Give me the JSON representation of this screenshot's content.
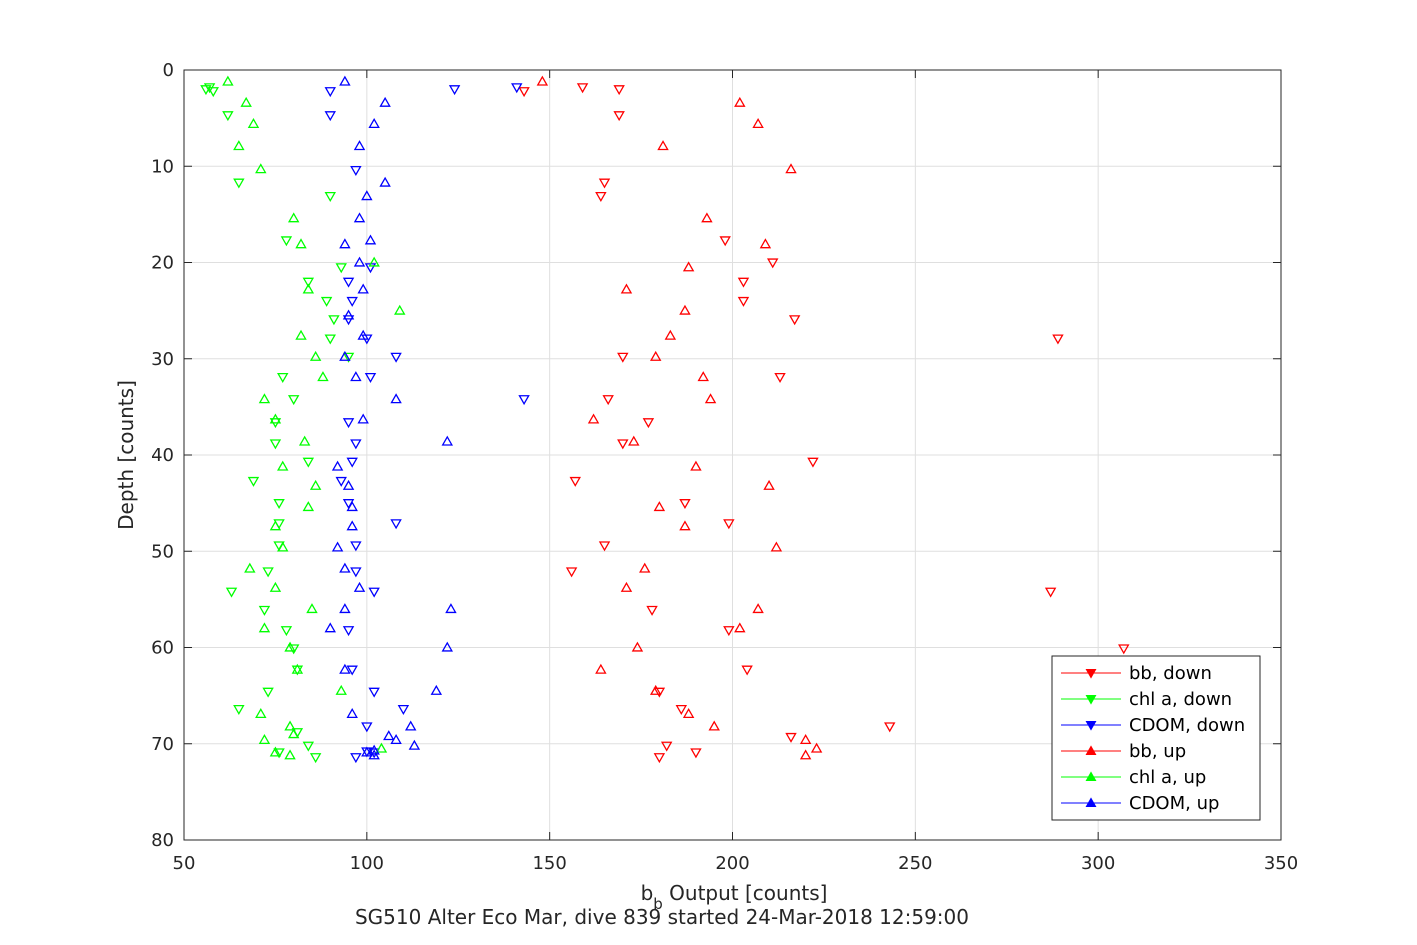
{
  "chart_data": {
    "type": "scatter",
    "xlabel_main": "b",
    "xlabel_sub": "b",
    "xlabel_rest": " Output [counts]",
    "ylabel": "Depth [counts]",
    "title": "SG510 Alter Eco Mar, dive 839 started 24-Mar-2018 12:59:00",
    "xlim": [
      50,
      350
    ],
    "ylim": [
      0,
      80
    ],
    "y_reversed": true,
    "grid": true,
    "legend_position": "bottom-right",
    "xticks": [
      "50",
      "100",
      "150",
      "200",
      "250",
      "300",
      "350"
    ],
    "yticks": [
      "0",
      "10",
      "20",
      "30",
      "40",
      "50",
      "60",
      "70",
      "80"
    ],
    "series": [
      {
        "name": "bb, down",
        "color": "#ff0000",
        "marker": "triangle-down",
        "points": [
          [
            159,
            1.8
          ],
          [
            169,
            2.0
          ],
          [
            143,
            2.2
          ],
          [
            169,
            4.7
          ],
          [
            165,
            11.7
          ],
          [
            164,
            13.1
          ],
          [
            198,
            17.7
          ],
          [
            203,
            22.0
          ],
          [
            211,
            20.0
          ],
          [
            203,
            24.0
          ],
          [
            217,
            25.9
          ],
          [
            289,
            27.9
          ],
          [
            170,
            29.8
          ],
          [
            213,
            31.9
          ],
          [
            166,
            34.2
          ],
          [
            177,
            36.6
          ],
          [
            170,
            38.8
          ],
          [
            222,
            40.7
          ],
          [
            157,
            42.7
          ],
          [
            187,
            45.0
          ],
          [
            199,
            47.1
          ],
          [
            165,
            49.4
          ],
          [
            156,
            52.1
          ],
          [
            287,
            54.2
          ],
          [
            178,
            56.1
          ],
          [
            199,
            58.2
          ],
          [
            307,
            60.1
          ],
          [
            204,
            62.3
          ],
          [
            180,
            64.6
          ],
          [
            186,
            66.4
          ],
          [
            216,
            69.3
          ],
          [
            182,
            70.2
          ],
          [
            190,
            70.9
          ],
          [
            180,
            71.4
          ],
          [
            243,
            68.2
          ]
        ]
      },
      {
        "name": "chl a, down",
        "color": "#00ff00",
        "marker": "triangle-down",
        "points": [
          [
            57,
            1.8
          ],
          [
            56,
            2.0
          ],
          [
            58,
            2.2
          ],
          [
            62,
            4.7
          ],
          [
            65,
            11.7
          ],
          [
            90,
            13.1
          ],
          [
            78,
            17.7
          ],
          [
            84,
            22.0
          ],
          [
            93,
            20.5
          ],
          [
            89,
            24.0
          ],
          [
            91,
            25.9
          ],
          [
            90,
            27.9
          ],
          [
            95,
            29.8
          ],
          [
            77,
            31.9
          ],
          [
            80,
            34.2
          ],
          [
            75,
            36.6
          ],
          [
            75,
            38.8
          ],
          [
            84,
            40.7
          ],
          [
            69,
            42.7
          ],
          [
            76,
            45.0
          ],
          [
            76,
            47.1
          ],
          [
            76,
            49.4
          ],
          [
            73,
            52.1
          ],
          [
            63,
            54.2
          ],
          [
            72,
            56.1
          ],
          [
            78,
            58.2
          ],
          [
            80,
            60.1
          ],
          [
            81,
            62.3
          ],
          [
            73,
            64.6
          ],
          [
            65,
            66.4
          ],
          [
            81,
            68.8
          ],
          [
            84,
            70.2
          ],
          [
            76,
            70.9
          ],
          [
            86,
            71.4
          ]
        ]
      },
      {
        "name": "CDOM, down",
        "color": "#0000ff",
        "marker": "triangle-down",
        "points": [
          [
            141,
            1.8
          ],
          [
            124,
            2.0
          ],
          [
            90,
            2.2
          ],
          [
            90,
            4.7
          ],
          [
            97,
            10.4
          ],
          [
            101,
            20.5
          ],
          [
            95,
            22.0
          ],
          [
            96,
            24.0
          ],
          [
            95,
            25.9
          ],
          [
            100,
            27.9
          ],
          [
            108,
            29.8
          ],
          [
            101,
            31.9
          ],
          [
            143,
            34.2
          ],
          [
            95,
            36.6
          ],
          [
            97,
            38.8
          ],
          [
            96,
            40.7
          ],
          [
            93,
            42.7
          ],
          [
            95,
            45.0
          ],
          [
            108,
            47.1
          ],
          [
            97,
            49.4
          ],
          [
            97,
            52.1
          ],
          [
            102,
            54.2
          ],
          [
            95,
            58.2
          ],
          [
            96,
            62.3
          ],
          [
            102,
            64.6
          ],
          [
            110,
            66.4
          ],
          [
            100,
            68.2
          ],
          [
            97,
            71.4
          ],
          [
            102,
            70.9
          ],
          [
            100,
            70.8
          ]
        ]
      },
      {
        "name": "bb, up",
        "color": "#ff0000",
        "marker": "triangle-up",
        "points": [
          [
            148,
            1.2
          ],
          [
            202,
            3.4
          ],
          [
            207,
            5.6
          ],
          [
            181,
            7.9
          ],
          [
            216,
            10.3
          ],
          [
            193,
            15.4
          ],
          [
            209,
            18.1
          ],
          [
            188,
            20.5
          ],
          [
            171,
            22.8
          ],
          [
            187,
            25.0
          ],
          [
            183,
            27.6
          ],
          [
            179,
            29.8
          ],
          [
            192,
            31.9
          ],
          [
            194,
            34.2
          ],
          [
            162,
            36.3
          ],
          [
            173,
            38.6
          ],
          [
            190,
            41.2
          ],
          [
            210,
            43.2
          ],
          [
            180,
            45.4
          ],
          [
            187,
            47.4
          ],
          [
            212,
            49.6
          ],
          [
            176,
            51.8
          ],
          [
            171,
            53.8
          ],
          [
            207,
            56.0
          ],
          [
            202,
            58.0
          ],
          [
            174,
            60.0
          ],
          [
            164,
            62.3
          ],
          [
            179,
            64.5
          ],
          [
            188,
            66.9
          ],
          [
            195,
            68.2
          ],
          [
            220,
            69.6
          ],
          [
            223,
            70.5
          ],
          [
            220,
            71.2
          ]
        ]
      },
      {
        "name": "chl a, up",
        "color": "#00ff00",
        "marker": "triangle-up",
        "points": [
          [
            62,
            1.2
          ],
          [
            67,
            3.4
          ],
          [
            69,
            5.6
          ],
          [
            65,
            7.9
          ],
          [
            71,
            10.3
          ],
          [
            80,
            15.4
          ],
          [
            82,
            18.1
          ],
          [
            102,
            20.0
          ],
          [
            84,
            22.8
          ],
          [
            109,
            25.0
          ],
          [
            82,
            27.6
          ],
          [
            86,
            29.8
          ],
          [
            88,
            31.9
          ],
          [
            72,
            34.2
          ],
          [
            75,
            36.3
          ],
          [
            83,
            38.6
          ],
          [
            77,
            41.2
          ],
          [
            86,
            43.2
          ],
          [
            84,
            45.4
          ],
          [
            75,
            47.4
          ],
          [
            77,
            49.6
          ],
          [
            68,
            51.8
          ],
          [
            75,
            53.8
          ],
          [
            85,
            56.0
          ],
          [
            72,
            58.0
          ],
          [
            79,
            60.0
          ],
          [
            81,
            62.3
          ],
          [
            93,
            64.5
          ],
          [
            71,
            66.9
          ],
          [
            79,
            68.2
          ],
          [
            72,
            69.6
          ],
          [
            80,
            69.0
          ],
          [
            104,
            70.5
          ],
          [
            75,
            70.9
          ],
          [
            79,
            71.2
          ]
        ]
      },
      {
        "name": "CDOM, up",
        "color": "#0000ff",
        "marker": "triangle-up",
        "points": [
          [
            94,
            1.2
          ],
          [
            105,
            3.4
          ],
          [
            102,
            5.6
          ],
          [
            98,
            7.9
          ],
          [
            105,
            11.7
          ],
          [
            100,
            13.1
          ],
          [
            98,
            15.4
          ],
          [
            101,
            17.7
          ],
          [
            94,
            18.1
          ],
          [
            98,
            20.0
          ],
          [
            99,
            22.8
          ],
          [
            95,
            25.5
          ],
          [
            99,
            27.6
          ],
          [
            94,
            29.8
          ],
          [
            97,
            31.9
          ],
          [
            108,
            34.2
          ],
          [
            99,
            36.3
          ],
          [
            122,
            38.6
          ],
          [
            92,
            41.2
          ],
          [
            95,
            43.2
          ],
          [
            96,
            45.4
          ],
          [
            96,
            47.4
          ],
          [
            92,
            49.6
          ],
          [
            94,
            51.8
          ],
          [
            98,
            53.8
          ],
          [
            94,
            56.0
          ],
          [
            90,
            58.0
          ],
          [
            122,
            60.0
          ],
          [
            123,
            56.0
          ],
          [
            94,
            62.3
          ],
          [
            119,
            64.5
          ],
          [
            96,
            66.9
          ],
          [
            112,
            68.2
          ],
          [
            106,
            69.2
          ],
          [
            108,
            69.6
          ],
          [
            113,
            70.2
          ],
          [
            102,
            70.7
          ],
          [
            100,
            70.9
          ],
          [
            102,
            71.2
          ]
        ]
      }
    ]
  }
}
